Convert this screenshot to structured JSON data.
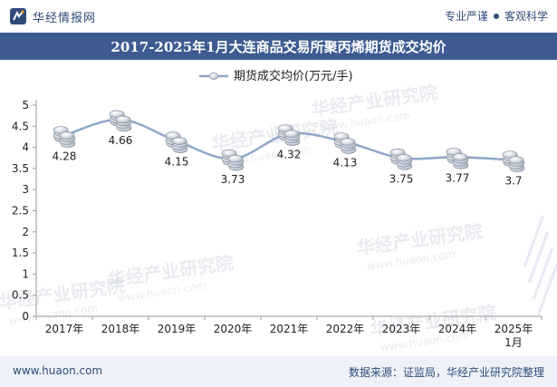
{
  "header": {
    "brand_name": "华经情报网",
    "slogan_left": "专业严谨",
    "slogan_right": "客观科学"
  },
  "footer": {
    "url": "www.huaon.com",
    "source": "数据来源：证监局，华经产业研究院整理"
  },
  "watermark": {
    "text": "华经产业研究院",
    "sub": "www.huaon.com"
  },
  "colors": {
    "title_bg": "#3d5b91",
    "brand": "#2f4a78",
    "line": "#8fa6c9",
    "axis_text": "#222222"
  },
  "chart_data": {
    "type": "line",
    "title": "2017-2025年1月大连商品交易所聚丙烯期货成交均价",
    "legend": "期货成交均价(万元/手)",
    "legend_position": "top-center",
    "categories": [
      "2017年",
      "2018年",
      "2019年",
      "2020年",
      "2021年",
      "2022年",
      "2023年",
      "2024年",
      "2025年\n1月"
    ],
    "series": [
      {
        "name": "期货成交均价(万元/手)",
        "values": [
          4.28,
          4.66,
          4.15,
          3.73,
          4.32,
          4.13,
          3.75,
          3.77,
          3.7
        ]
      }
    ],
    "value_labels": [
      "4.28",
      "4.66",
      "4.15",
      "3.73",
      "4.32",
      "4.13",
      "3.75",
      "3.77",
      "3.7"
    ],
    "yticks": [
      "0",
      "0.5",
      "1",
      "1.5",
      "2",
      "2.5",
      "3",
      "3.5",
      "4",
      "4.5",
      "5"
    ],
    "ylim": [
      0,
      5
    ],
    "xlabel": "",
    "ylabel": "",
    "grid": false
  }
}
